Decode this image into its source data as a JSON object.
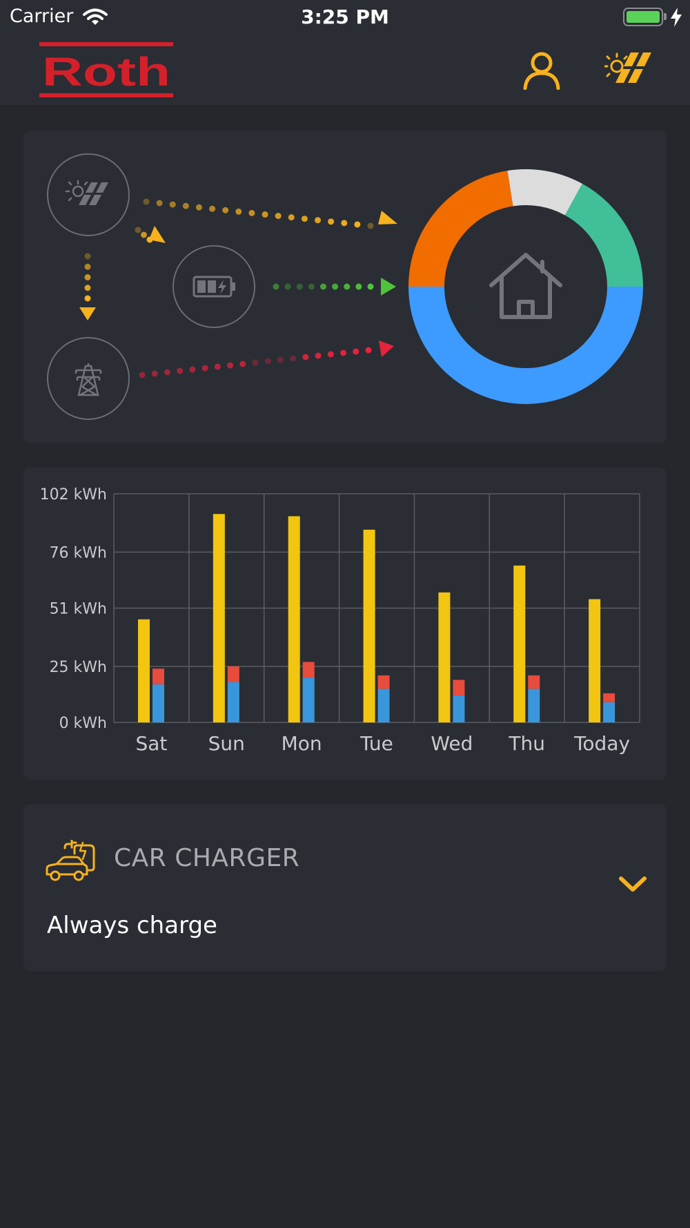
{
  "status_bar": {
    "carrier": "Carrier",
    "time": "3:25 PM",
    "battery_level": 1.0
  },
  "header": {
    "logo_text": "Roth",
    "logo_color": "#d4202a",
    "icons": [
      "user-icon",
      "solar-panel-icon"
    ],
    "accent_color": "#f7b21d"
  },
  "energy_flow": {
    "nodes": [
      "solar-panel-icon",
      "battery-icon",
      "power-grid-icon",
      "house-icon"
    ],
    "flow_colors": {
      "solar": "#f7b21d",
      "battery": "#4fc33b",
      "grid": "#e8233e"
    },
    "donut_segments": [
      {
        "color": "#3d9bff",
        "value": 0.5
      },
      {
        "color": "#f26d00",
        "value": 0.225
      },
      {
        "color": "#dcdcdc",
        "value": 0.105
      },
      {
        "color": "#41bf98",
        "value": 0.17
      }
    ]
  },
  "chart_data": {
    "type": "bar",
    "categories": [
      "Sat",
      "Sun",
      "Mon",
      "Tue",
      "Wed",
      "Thu",
      "Today"
    ],
    "y_ticks": [
      "102 kWh",
      "76 kWh",
      "51 kWh",
      "25 kWh",
      "0 kWh"
    ],
    "y_tick_values": [
      102,
      76,
      51,
      25,
      0
    ],
    "ylim": [
      0,
      102
    ],
    "grid": true,
    "series": [
      {
        "color": "#f2c511",
        "values": [
          46,
          93,
          92,
          86,
          58,
          70,
          55
        ]
      },
      {
        "color": "#3a96db",
        "values": [
          17,
          18,
          20,
          15,
          12,
          15,
          9
        ]
      },
      {
        "color": "#e74c3c",
        "values": [
          7,
          7,
          7,
          6,
          7,
          6,
          4
        ]
      }
    ]
  },
  "car_charger": {
    "title": "CAR CHARGER",
    "mode": "Always charge"
  }
}
